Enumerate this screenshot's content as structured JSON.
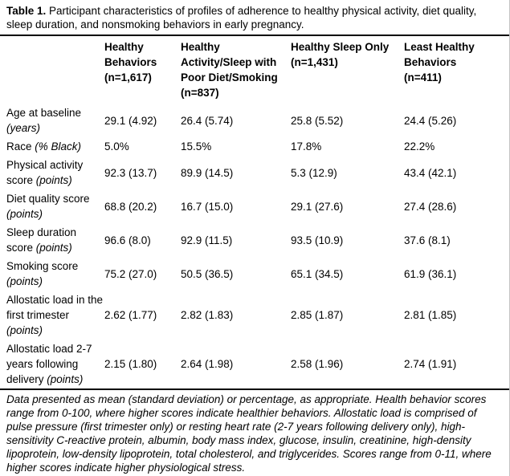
{
  "table": {
    "title_label": "Table 1.",
    "title_caption": " Participant characteristics of profiles of adherence to healthy physical activity, diet quality,\nsleep duration, and nonsmoking behaviors in early pregnancy.",
    "columns": [
      "Healthy\nBehaviors\n(n=1,617)",
      "Healthy\nActivity/Sleep with\nPoor Diet/Smoking\n(n=837)",
      "Healthy Sleep Only\n(n=1,431)",
      "Least Healthy\nBehaviors\n(n=411)"
    ],
    "rows": [
      {
        "label": "Age at baseline",
        "unit": "(years)",
        "values": [
          "29.1 (4.92)",
          "26.4 (5.74)",
          "25.8 (5.52)",
          "24.4 (5.26)"
        ]
      },
      {
        "label": "Race",
        "unit": "(% Black)",
        "values": [
          "5.0%",
          "15.5%",
          "17.8%",
          "22.2%"
        ]
      },
      {
        "label": "Physical activity score",
        "unit": "(points)",
        "values": [
          "92.3 (13.7)",
          "89.9 (14.5)",
          "5.3 (12.9)",
          "43.4 (42.1)"
        ]
      },
      {
        "label": "Diet quality score",
        "unit": "(points)",
        "values": [
          "68.8 (20.2)",
          "16.7 (15.0)",
          "29.1 (27.6)",
          "27.4 (28.6)"
        ]
      },
      {
        "label": "Sleep duration score",
        "unit": "(points)",
        "values": [
          "96.6 (8.0)",
          "92.9 (11.5)",
          "93.5 (10.9)",
          "37.6 (8.1)"
        ]
      },
      {
        "label": "Smoking score",
        "unit": "(points)",
        "values": [
          "75.2 (27.0)",
          "50.5 (36.5)",
          "65.1 (34.5)",
          "61.9 (36.1)"
        ]
      },
      {
        "label": "Allostatic load in the first trimester",
        "unit": "(points)",
        "values": [
          "2.62 (1.77)",
          "2.82 (1.83)",
          "2.85 (1.87)",
          "2.81 (1.85)"
        ]
      },
      {
        "label": "Allostatic load 2-7 years following delivery",
        "unit": "(points)",
        "values": [
          "2.15 (1.80)",
          "2.64 (1.98)",
          "2.58 (1.96)",
          "2.74 (1.91)"
        ]
      }
    ],
    "footnote": "Data presented as mean (standard deviation) or percentage, as appropriate. Health behavior scores\nrange from 0-100, where higher scores indicate healthier behaviors. Allostatic load is comprised of\npulse pressure (first trimester only) or resting heart rate (2-7 years following delivery only), high-\nsensitivity C-reactive protein, albumin, body mass index, glucose, insulin, creatinine, high-density\nlipoprotein, low-density lipoprotein, total cholesterol, and triglycerides. Scores range from 0-11, where\nhigher scores indicate higher physiological stress."
  }
}
